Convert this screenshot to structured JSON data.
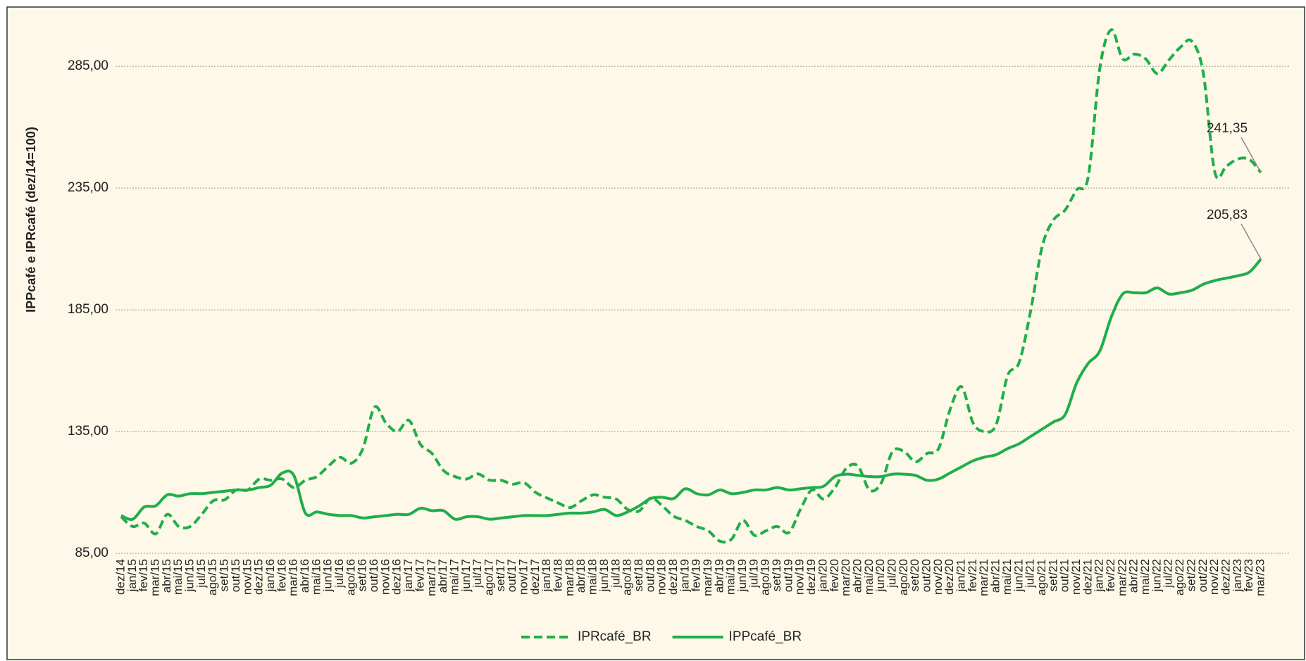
{
  "chart_data": {
    "type": "line",
    "y_label": "IPPcafé e IPRcafé  (dez/14=100)",
    "categories": [
      "dez/14",
      "jan/15",
      "fev/15",
      "mar/15",
      "abr/15",
      "mai/15",
      "jun/15",
      "jul/15",
      "ago/15",
      "set/15",
      "out/15",
      "nov/15",
      "dez/15",
      "jan/16",
      "fev/16",
      "mar/16",
      "abr/16",
      "mai/16",
      "jun/16",
      "jul/16",
      "ago/16",
      "set/16",
      "out/16",
      "nov/16",
      "dez/16",
      "jan/17",
      "fev/17",
      "mar/17",
      "abr/17",
      "mai/17",
      "jun/17",
      "jul/17",
      "ago/17",
      "set/17",
      "out/17",
      "nov/17",
      "dez/17",
      "jan/18",
      "fev/18",
      "mar/18",
      "abr/18",
      "mai/18",
      "jun/18",
      "jul/18",
      "ago/18",
      "set/18",
      "out/18",
      "nov/18",
      "dez/18",
      "jan/19",
      "fev/19",
      "mar/19",
      "abr/19",
      "mai/19",
      "jun/19",
      "jul/19",
      "ago/19",
      "set/19",
      "out/19",
      "nov/19",
      "dez/19",
      "jan/20",
      "fev/20",
      "mar/20",
      "abr/20",
      "mai/20",
      "jun/20",
      "jul/20",
      "ago/20",
      "set/20",
      "out/20",
      "nov/20",
      "dez/20",
      "jan/21",
      "fev/21",
      "mar/21",
      "abr/21",
      "mai/21",
      "jun/21",
      "jul/21",
      "ago/21",
      "set/21",
      "out/21",
      "nov/21",
      "dez/21",
      "jan/22",
      "fev/22",
      "mar/22",
      "abr/22",
      "mai/22",
      "jun/22",
      "jul/22",
      "ago/22",
      "set/22",
      "out/22",
      "nov/22",
      "dez/22",
      "jan/23",
      "fev/23",
      "mar/23"
    ],
    "series": [
      {
        "name": "IPRcafé_BR",
        "color": "#1fae4b",
        "line_style": "dashed",
        "values": [
          100,
          96,
          97.4,
          93,
          101,
          96,
          96,
          101,
          106.6,
          107,
          111,
          111,
          115.5,
          115,
          115.5,
          112,
          115,
          116.5,
          120.8,
          124.4,
          122,
          128,
          145,
          138.5,
          135,
          139.6,
          129.7,
          126,
          119,
          116.5,
          115.5,
          117.6,
          115,
          115,
          113.4,
          114,
          110,
          107.7,
          105.6,
          103.8,
          106.6,
          109,
          108,
          107.3,
          103,
          102.4,
          107.7,
          104.5,
          100.2,
          98.5,
          96,
          94.2,
          90,
          90.7,
          98.5,
          92.4,
          94.2,
          96,
          93.5,
          103,
          111,
          107.3,
          112,
          120,
          120.8,
          111,
          113.7,
          126.8,
          126.8,
          122.6,
          126,
          128,
          144,
          153.4,
          138.5,
          135,
          137.8,
          158,
          163.4,
          184.6,
          211,
          222,
          226,
          234.3,
          239.6,
          284,
          300,
          288,
          290,
          288,
          282,
          287.5,
          292.8,
          295.3,
          282,
          241.4,
          244,
          247,
          246.7,
          241.35
        ],
        "value_labels": [
          null,
          null,
          null,
          null,
          null,
          null,
          null,
          null,
          null,
          null,
          null,
          null,
          null,
          null,
          null,
          null,
          null,
          null,
          null,
          null,
          null,
          null,
          null,
          null,
          null,
          null,
          null,
          null,
          null,
          null,
          null,
          null,
          null,
          null,
          null,
          null,
          null,
          null,
          null,
          null,
          null,
          null,
          null,
          null,
          null,
          null,
          null,
          null,
          null,
          null,
          null,
          null,
          null,
          null,
          null,
          null,
          null,
          null,
          null,
          null,
          null,
          null,
          null,
          null,
          null,
          null,
          null,
          null,
          null,
          null,
          null,
          null,
          null,
          null,
          null,
          null,
          null,
          null,
          null,
          null,
          null,
          null,
          null,
          null,
          null,
          null,
          null,
          null,
          null,
          null,
          null,
          null,
          null,
          null,
          null,
          null,
          null,
          null,
          null,
          "241,35"
        ]
      },
      {
        "name": "IPPcafé_BR",
        "color": "#1fae4b",
        "line_style": "solid",
        "values": [
          100.5,
          99,
          104,
          104.5,
          109,
          108.5,
          109.5,
          109.5,
          110,
          110.5,
          111,
          111,
          112,
          113,
          118,
          117,
          101.5,
          102,
          101,
          100.5,
          100.5,
          99.5,
          100,
          100.5,
          101,
          101,
          103.5,
          102.5,
          102.5,
          99,
          100,
          100,
          99,
          99.5,
          100,
          100.5,
          100.5,
          100.5,
          101,
          101.5,
          101.5,
          102,
          103,
          100.5,
          102,
          104.5,
          107.5,
          108,
          107.5,
          111.5,
          109.5,
          109,
          111,
          109.5,
          110,
          111,
          111,
          112,
          111,
          111.5,
          112,
          112.5,
          116.5,
          117.5,
          117,
          116.5,
          116.5,
          117.5,
          117.5,
          117,
          115,
          115.5,
          118,
          120.5,
          123,
          124.5,
          125.5,
          128,
          130,
          133,
          136,
          139,
          142,
          155,
          163,
          168,
          182,
          191.5,
          192,
          192,
          194,
          191.5,
          192,
          193,
          195.5,
          197,
          198,
          199,
          200.5,
          205.83
        ],
        "value_labels": [
          null,
          null,
          null,
          null,
          null,
          null,
          null,
          null,
          null,
          null,
          null,
          null,
          null,
          null,
          null,
          null,
          null,
          null,
          null,
          null,
          null,
          null,
          null,
          null,
          null,
          null,
          null,
          null,
          null,
          null,
          null,
          null,
          null,
          null,
          null,
          null,
          null,
          null,
          null,
          null,
          null,
          null,
          null,
          null,
          null,
          null,
          null,
          null,
          null,
          null,
          null,
          null,
          null,
          null,
          null,
          null,
          null,
          null,
          null,
          null,
          null,
          null,
          null,
          null,
          null,
          null,
          null,
          null,
          null,
          null,
          null,
          null,
          null,
          null,
          null,
          null,
          null,
          null,
          null,
          null,
          null,
          null,
          null,
          null,
          null,
          null,
          null,
          null,
          null,
          null,
          null,
          null,
          null,
          null,
          null,
          null,
          null,
          null,
          null,
          "205,83"
        ]
      }
    ],
    "ylim": [
      85,
      305
    ],
    "yticks": [
      {
        "value": 85,
        "label": "85,00"
      },
      {
        "value": 135,
        "label": "135,00"
      },
      {
        "value": 185,
        "label": "185,00"
      },
      {
        "value": 235,
        "label": "235,00"
      },
      {
        "value": 285,
        "label": "285,00"
      }
    ],
    "grid": true,
    "legend": "bottom"
  }
}
